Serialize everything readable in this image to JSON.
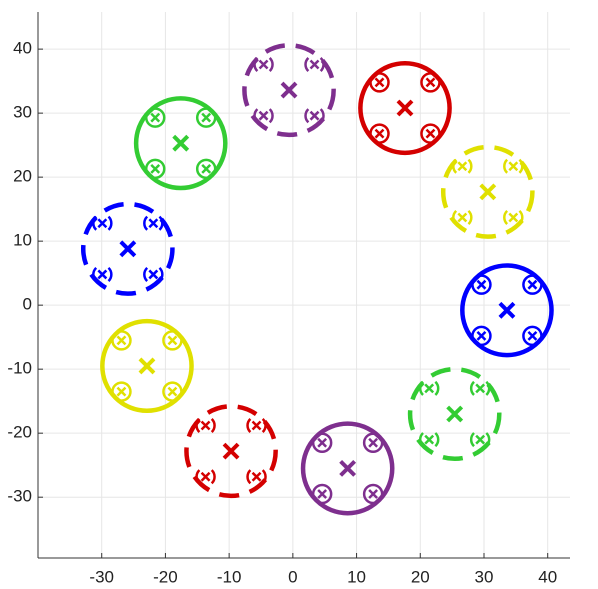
{
  "chart_data": {
    "type": "scatter",
    "xlim": [
      -40,
      43.5
    ],
    "ylim": [
      -39.5,
      45.8
    ],
    "xticks": [
      -30,
      -20,
      -10,
      0,
      10,
      20,
      30,
      40
    ],
    "yticks": [
      -30,
      -20,
      -10,
      0,
      10,
      20,
      30,
      40
    ],
    "grid": true,
    "series": [
      {
        "color": "#7e2f8e",
        "style": "dashed",
        "x": -0.6,
        "y": 33.6,
        "radius": 7,
        "sub_x": [
          -4.6,
          3.4,
          -4.6,
          3.4
        ],
        "sub_y": [
          37.6,
          37.6,
          29.6,
          29.6
        ]
      },
      {
        "color": "#d40000",
        "style": "solid",
        "x": 17.6,
        "y": 30.8,
        "radius": 7,
        "sub_x": [
          13.6,
          21.6,
          13.6,
          21.6
        ],
        "sub_y": [
          34.8,
          34.8,
          26.8,
          26.8
        ]
      },
      {
        "color": "#e0e000",
        "style": "dashed",
        "x": 30.6,
        "y": 17.7,
        "radius": 7,
        "sub_x": [
          26.6,
          34.6,
          26.6,
          34.6
        ],
        "sub_y": [
          21.7,
          21.7,
          13.7,
          13.7
        ]
      },
      {
        "color": "#0000ff",
        "style": "solid",
        "x": 33.6,
        "y": -0.8,
        "radius": 7,
        "sub_x": [
          29.6,
          37.6,
          29.6,
          37.6
        ],
        "sub_y": [
          3.2,
          3.2,
          -4.8,
          -4.8
        ]
      },
      {
        "color": "#33cc33",
        "style": "dashed",
        "x": 25.4,
        "y": -17,
        "radius": 7,
        "sub_x": [
          21.4,
          29.4,
          21.4,
          29.4
        ],
        "sub_y": [
          -13,
          -13,
          -21,
          -21
        ]
      },
      {
        "color": "#7e2f8e",
        "style": "solid",
        "x": 8.6,
        "y": -25.5,
        "radius": 7,
        "sub_x": [
          4.6,
          12.6,
          4.6,
          12.6
        ],
        "sub_y": [
          -21.5,
          -21.5,
          -29.5,
          -29.5
        ]
      },
      {
        "color": "#d40000",
        "style": "dashed",
        "x": -9.7,
        "y": -22.8,
        "radius": 7,
        "sub_x": [
          -13.7,
          -5.7,
          -13.7,
          -5.7
        ],
        "sub_y": [
          -18.8,
          -18.8,
          -26.8,
          -26.8
        ]
      },
      {
        "color": "#e0e000",
        "style": "solid",
        "x": -22.9,
        "y": -9.5,
        "radius": 7,
        "sub_x": [
          -26.9,
          -18.9,
          -26.9,
          -18.9
        ],
        "sub_y": [
          -5.5,
          -5.5,
          -13.5,
          -13.5
        ]
      },
      {
        "color": "#0000ff",
        "style": "dashed",
        "x": -25.9,
        "y": 8.8,
        "radius": 7,
        "sub_x": [
          -29.9,
          -21.9,
          -29.9,
          -21.9
        ],
        "sub_y": [
          12.8,
          12.8,
          4.8,
          4.8
        ]
      },
      {
        "color": "#33cc33",
        "style": "solid",
        "x": -17.6,
        "y": 25.3,
        "radius": 7,
        "sub_x": [
          -21.6,
          -13.6,
          -21.6,
          -13.6
        ],
        "sub_y": [
          29.3,
          29.3,
          21.3,
          21.3
        ]
      }
    ]
  }
}
